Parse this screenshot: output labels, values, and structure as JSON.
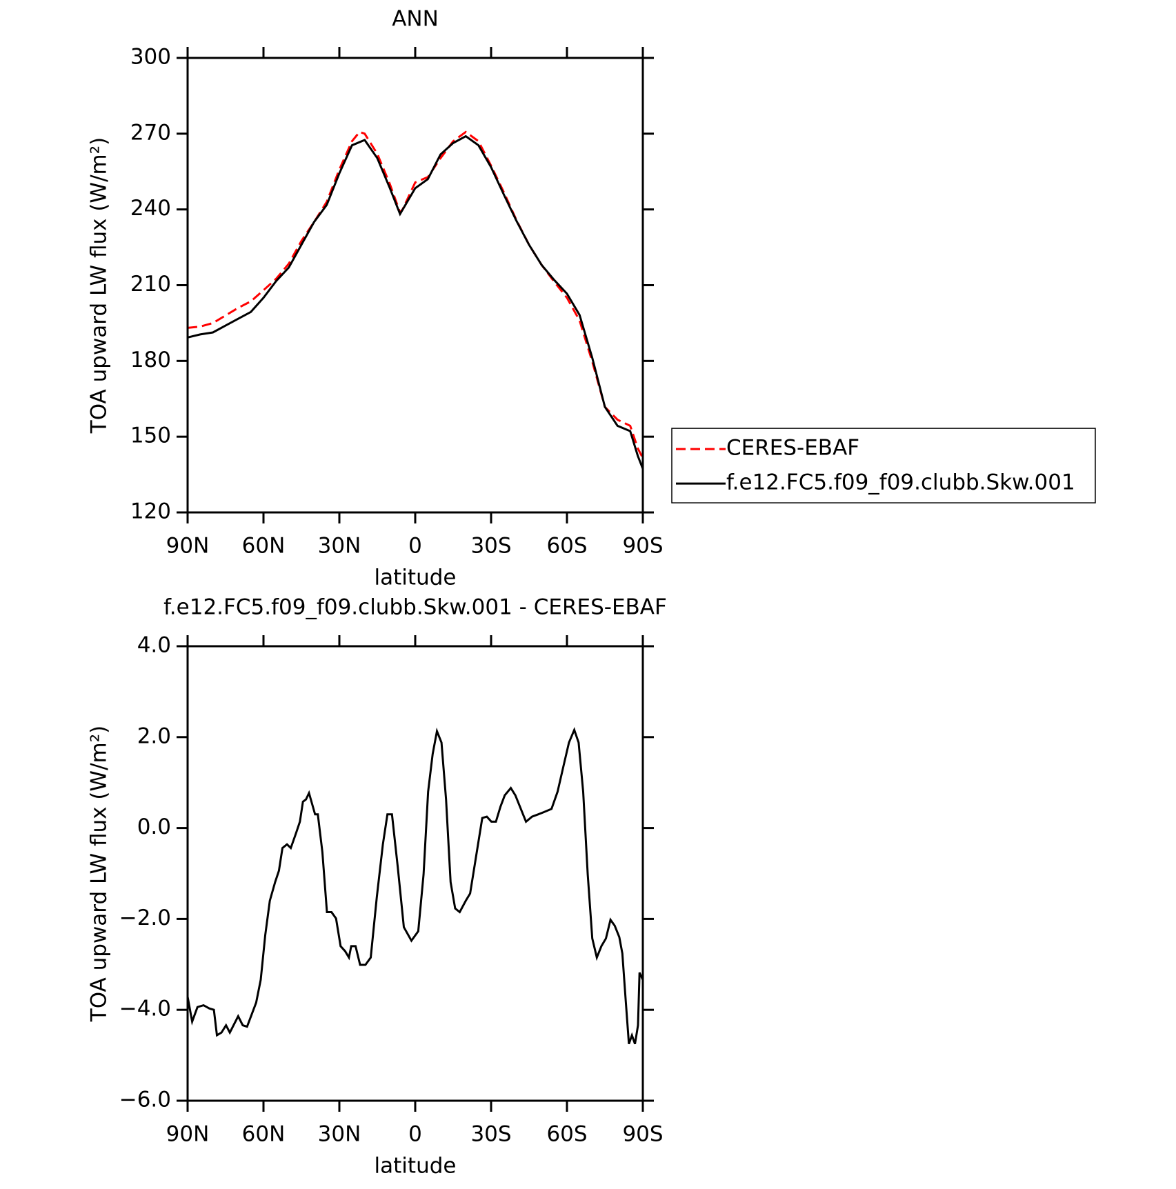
{
  "chart_data": [
    {
      "type": "line",
      "title": "ANN",
      "xlabel": "latitude",
      "ylabel": "TOA upward LW flux (W/m²)",
      "xlim": [
        90,
        -90
      ],
      "xticks": [
        {
          "value": 90,
          "label": "90N"
        },
        {
          "value": 60,
          "label": "60N"
        },
        {
          "value": 30,
          "label": "30N"
        },
        0,
        {
          "value": -30,
          "label": "30S"
        },
        {
          "value": -60,
          "label": "60S"
        },
        {
          "value": -90,
          "label": "90S"
        }
      ],
      "ylim": [
        120,
        300
      ],
      "yticks": [
        120,
        150,
        180,
        210,
        240,
        270,
        300
      ],
      "legend": "right",
      "series": [
        {
          "name": "CERES-EBAF",
          "color": "#ff0000",
          "style": "dashed",
          "x": [
            90,
            85,
            80,
            75,
            70,
            65,
            60,
            55,
            50,
            45,
            40,
            35,
            30,
            25,
            22,
            20,
            15,
            10,
            6,
            5,
            0,
            -5,
            -10,
            -15,
            -20,
            -25,
            -30,
            -35,
            -40,
            -45,
            -50,
            -55,
            -60,
            -65,
            -70,
            -75,
            -80,
            -85,
            -88,
            -90
          ],
          "values": [
            193.1,
            193.6,
            195,
            198,
            201,
            203.6,
            208,
            212.5,
            218.5,
            227.5,
            235,
            243,
            255.8,
            267,
            270.7,
            270,
            262,
            250,
            238.8,
            240,
            250.7,
            252.8,
            260.3,
            267,
            270.7,
            267,
            257.3,
            246.9,
            235.8,
            226,
            218,
            211.3,
            205,
            196,
            179.7,
            161.8,
            156.7,
            154.3,
            145.4,
            141.5
          ]
        },
        {
          "name": "f.e12.FC5.f09_f09.clubb.Skw.001",
          "color": "#000000",
          "style": "solid",
          "x": [
            90,
            85,
            80,
            75,
            70,
            65,
            60,
            55,
            50,
            45,
            40,
            35,
            30,
            25,
            20,
            15,
            10,
            6,
            0,
            -5,
            -10,
            -15,
            -20,
            -25,
            -30,
            -35,
            -40,
            -45,
            -50,
            -55,
            -60,
            -65,
            -70,
            -75,
            -80,
            -85,
            -88,
            -90
          ],
          "values": [
            189.3,
            190.5,
            191.3,
            194,
            196.7,
            199.4,
            205,
            211.6,
            217,
            226,
            235,
            241.8,
            254.3,
            265.4,
            267.5,
            260.3,
            248.4,
            238.2,
            248.4,
            252,
            261.8,
            266.3,
            269,
            265.4,
            256.7,
            246,
            235.5,
            226,
            218,
            212,
            206.6,
            198.2,
            181.2,
            161.8,
            154.3,
            152.2,
            142.4,
            137.3
          ]
        }
      ]
    },
    {
      "type": "line",
      "title": "f.e12.FC5.f09_f09.clubb.Skw.001 - CERES-EBAF",
      "xlabel": "latitude",
      "ylabel": "TOA upward LW flux (W/m²)",
      "xlim": [
        90,
        -90
      ],
      "xticks": [
        {
          "value": 90,
          "label": "90N"
        },
        {
          "value": 60,
          "label": "60N"
        },
        {
          "value": 30,
          "label": "30N"
        },
        0,
        {
          "value": -30,
          "label": "30S"
        },
        {
          "value": -60,
          "label": "60S"
        },
        {
          "value": -90,
          "label": "90S"
        }
      ],
      "ylim": [
        -6,
        4
      ],
      "yticks": [
        {
          "value": -6,
          "label": "−6.0"
        },
        {
          "value": -4,
          "label": "−4.0"
        },
        {
          "value": -2,
          "label": "−2.0"
        },
        {
          "value": 0,
          "label": "0.0"
        },
        {
          "value": 2,
          "label": "2.0"
        },
        {
          "value": 4,
          "label": "4.0"
        }
      ],
      "series": [
        {
          "color": "#000000",
          "style": "solid",
          "x": [
            90,
            88.2,
            86.1,
            83.7,
            81.4,
            79.6,
            78.4,
            76.6,
            74.8,
            73.3,
            70,
            68.2,
            66.5,
            62.9,
            61.1,
            59.3,
            57.5,
            55.4,
            53.9,
            52.5,
            50.7,
            49.2,
            47.1,
            45.6,
            44.4,
            43.2,
            42,
            39.6,
            38.5,
            36.7,
            34.9,
            33.1,
            31.3,
            29.5,
            27.7,
            26.2,
            25.3,
            23.6,
            21.8,
            19.7,
            17.6,
            15.2,
            12.8,
            11,
            9.2,
            6.9,
            4.5,
            1.5,
            -1.2,
            -3.3,
            -5.1,
            -6.9,
            -8.6,
            -10.4,
            -12.2,
            -14,
            -15.8,
            -17.6,
            -20,
            -21.7,
            -24.1,
            -26.5,
            -28.3,
            -30.1,
            -31.9,
            -33.7,
            -35.4,
            -37.8,
            -39.6,
            -41.4,
            -43.8,
            -46.2,
            -48.6,
            -50.9,
            -53.9,
            -56.3,
            -58.7,
            -60.8,
            -62.9,
            -64.6,
            -66.4,
            -68.2,
            -70,
            -71.8,
            -73.6,
            -75.4,
            -77.2,
            -78.9,
            -80.7,
            -81.9,
            -83.3,
            -84.5,
            -85.7,
            -86.9,
            -88.1,
            -88.7,
            -90
          ],
          "values": [
            -3.71,
            -4.26,
            -3.94,
            -3.9,
            -3.97,
            -4.0,
            -4.56,
            -4.5,
            -4.34,
            -4.5,
            -4.14,
            -4.34,
            -4.37,
            -3.84,
            -3.34,
            -2.35,
            -1.6,
            -1.19,
            -0.94,
            -0.44,
            -0.36,
            -0.44,
            -0.11,
            0.14,
            0.58,
            0.63,
            0.77,
            0.3,
            0.3,
            -0.53,
            -1.85,
            -1.85,
            -1.99,
            -2.6,
            -2.71,
            -2.85,
            -2.6,
            -2.6,
            -3.01,
            -3.01,
            -2.85,
            -1.52,
            -0.36,
            0.3,
            0.3,
            -0.86,
            -2.18,
            -2.48,
            -2.27,
            -1.02,
            0.8,
            1.63,
            2.13,
            1.88,
            0.63,
            -1.19,
            -1.77,
            -1.85,
            -1.6,
            -1.44,
            -0.61,
            0.22,
            0.25,
            0.14,
            0.14,
            0.47,
            0.72,
            0.88,
            0.72,
            0.47,
            0.14,
            0.25,
            0.3,
            0.35,
            0.42,
            0.8,
            1.38,
            1.88,
            2.16,
            1.88,
            0.8,
            -1.02,
            -2.43,
            -2.85,
            -2.6,
            -2.43,
            -2.02,
            -2.15,
            -2.4,
            -2.76,
            -3.84,
            -4.75,
            -4.56,
            -4.75,
            -4.34,
            -3.18,
            -3.34
          ]
        }
      ]
    }
  ]
}
